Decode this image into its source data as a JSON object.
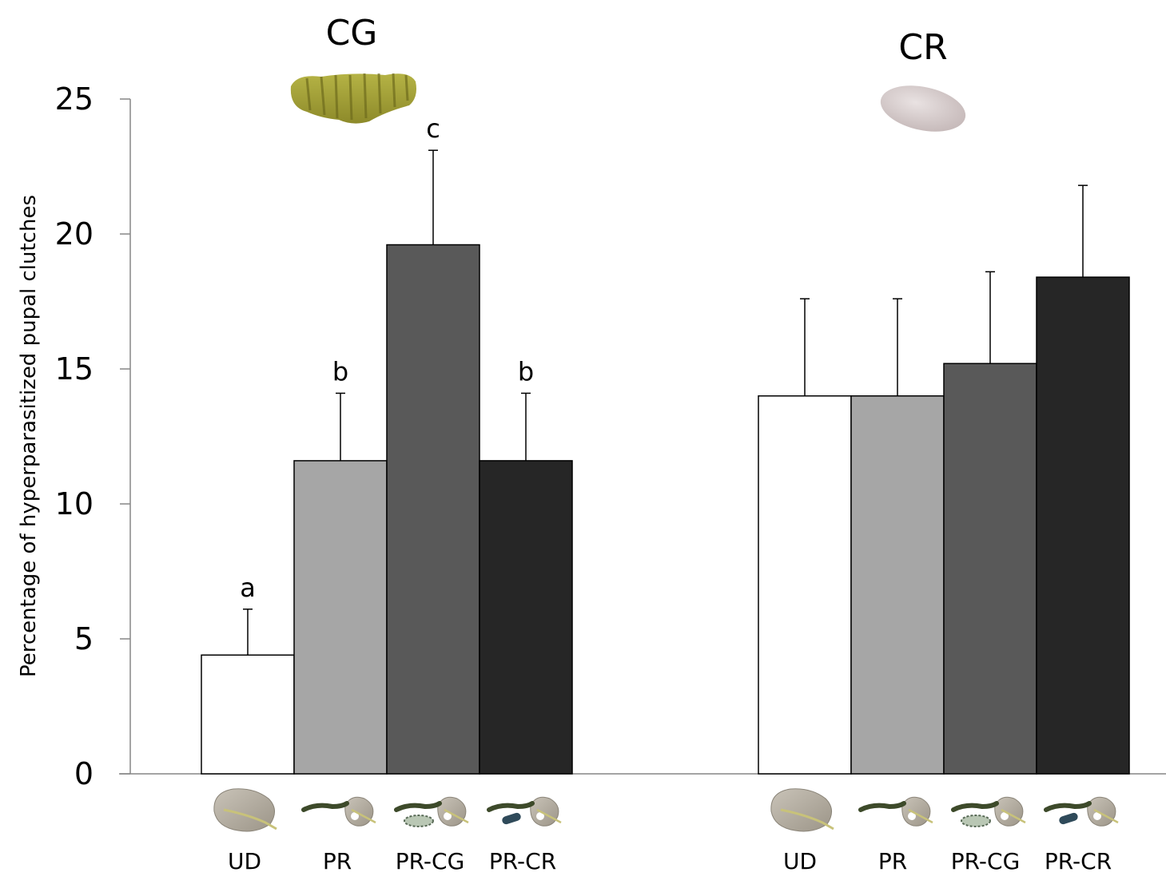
{
  "chart_data": {
    "type": "bar",
    "ylabel": "Percentage of hyperparasitized pupal clutches",
    "xlabel": "",
    "ylim": [
      0,
      25
    ],
    "yticks": [
      0,
      5,
      10,
      15,
      20,
      25
    ],
    "grid": false,
    "legend": "none",
    "categories": [
      "UD",
      "PR",
      "PR-CG",
      "PR-CR"
    ],
    "category_colors": [
      "#ffffff",
      "#a6a6a6",
      "#595959",
      "#262626"
    ],
    "category_icons": [
      "undamaged-leaf-icon",
      "leaf-with-caterpillar-icon",
      "leaf-with-caterpillar-and-cg-pupae-icon",
      "leaf-with-caterpillar-and-cr-pupa-icon"
    ],
    "groups": [
      {
        "title": "CG",
        "icon": "cg-cocoon-cluster-icon",
        "values": [
          4.4,
          11.6,
          19.6,
          11.6
        ],
        "errors": [
          1.7,
          2.5,
          3.5,
          2.5
        ],
        "letters": [
          "a",
          "b",
          "c",
          "b"
        ]
      },
      {
        "title": "CR",
        "icon": "cr-cocoon-icon",
        "values": [
          14.0,
          14.0,
          15.2,
          18.4
        ],
        "errors": [
          3.6,
          3.6,
          3.4,
          3.4
        ],
        "letters": [
          "",
          "",
          "",
          ""
        ]
      }
    ]
  }
}
